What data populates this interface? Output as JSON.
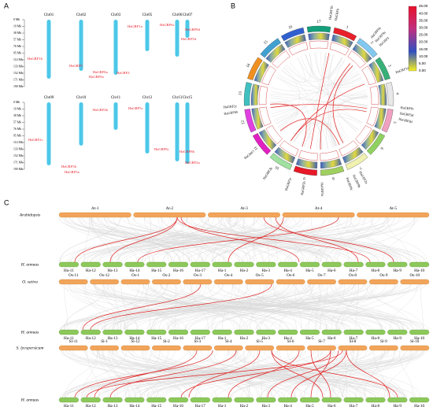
{
  "panel_a": {
    "label": "A",
    "scale": [
      "0 Mb",
      "19 Mb",
      "38 Mb",
      "57 Mb",
      "76 Mb",
      "95 Mb",
      "114 Mb",
      "133 Mb",
      "152 Mb",
      "171 Mb",
      "190 Mb"
    ],
    "groups": [
      {
        "chromosomes": [
          "Chr01",
          "Chr02",
          "Chr03",
          "Chr05",
          "Chr06",
          "Chr07"
        ],
        "genes": [
          "HaGRF1b",
          "HaGRF9",
          "HaGRF6a",
          "HaGRF9a",
          "HaGRF3",
          "HaGRF1a",
          "HaGRF6c",
          "HaGRF8d",
          "HaGRF5d"
        ]
      },
      {
        "chromosomes": [
          "Chr09",
          "Chr10",
          "Chr11",
          "Chr12",
          "Chr13",
          "Chr15"
        ],
        "genes": [
          "HaGRF2c",
          "HaGRF5b",
          "HaGRF5a",
          "HaGRF2b",
          "HaGRF5c",
          "HaGRF8c",
          "HaGRF8b",
          "HaGRF2a"
        ]
      }
    ]
  },
  "panel_b": {
    "label": "B",
    "chromosomes": [
      "17",
      "1",
      "2",
      "3",
      "4",
      "5",
      "6",
      "7",
      "8",
      "9",
      "10",
      "11",
      "12",
      "13",
      "14",
      "15",
      "16"
    ],
    "genes": [
      "HaGRF1b",
      "HaGRF9",
      "HaGRF6a",
      "HaGRF9a",
      "HaGRF3",
      "HaGRF1a",
      "HaGRF6c",
      "HaGRF5d",
      "HaGRF8d",
      "HaGRF2a",
      "HaGRF8b",
      "HaGRF8c",
      "HaGRF5a",
      "HaGRF5b",
      "HaGRF5c",
      "HaGRF2b",
      "HaGRF6b",
      "HaGRF2c",
      "HaGRF7"
    ],
    "colorbar_ticks": [
      "45.00",
      "40.00",
      "35.00",
      "30.00",
      "25.00",
      "20.00",
      "15.00",
      "10.00",
      "5.00",
      "0.00"
    ]
  },
  "panel_c": {
    "label": "C",
    "rows": [
      {
        "species": "Arabidopsis",
        "chromosomes": [
          "At-1",
          "At-2",
          "At-3",
          "At-4",
          "At-5"
        ],
        "target": "H. annuus",
        "target_chromosomes": [
          "Ha-11",
          "Ha-12",
          "Ha-13",
          "Ha-14",
          "Ha-15",
          "Ha-16",
          "Ha-17",
          "Ha-1",
          "Ha-2",
          "Ha-3",
          "Ha-4",
          "Ha-5",
          "Ha-6",
          "Ha-7",
          "Ha-8",
          "Ha-9",
          "Ha-10"
        ]
      },
      {
        "species": "O. sativa",
        "chromosomes": [
          "Os-11",
          "Os-12",
          "Os-1",
          "Os-2",
          "Os-3",
          "Os-4",
          "Os-5",
          "Os-6",
          "Os-7",
          "Os-8",
          "Os-9",
          "Os-10"
        ],
        "target": "H. annuus",
        "target_chromosomes": [
          "Ha-11",
          "Ha-12",
          "Ha-13",
          "Ha-14",
          "Ha-15",
          "Ha-16",
          "Ha-17",
          "Ha-1",
          "Ha-2",
          "Ha-3",
          "Ha-4",
          "Ha-5",
          "Ha-6",
          "Ha-7",
          "Ha-8",
          "Ha-9",
          "Ha-10"
        ]
      },
      {
        "species": "S. lycopersicum",
        "chromosomes": [
          "Sl-11",
          "Sl-1",
          "Sl-12",
          "Sl-2",
          "Sl-3",
          "Sl-4",
          "Sl-5",
          "Sl-6",
          "Sl-7",
          "Sl-8",
          "Sl-9",
          "Sl-10"
        ],
        "target": "H. annuus",
        "target_chromosomes": [
          "Ha-11",
          "Ha-12",
          "Ha-13",
          "Ha-14",
          "Ha-15",
          "Ha-16",
          "Ha-17",
          "Ha-1",
          "Ha-2",
          "Ha-3",
          "Ha-4",
          "Ha-5",
          "Ha-6",
          "Ha-7",
          "Ha-8",
          "Ha-9",
          "Ha-10"
        ]
      }
    ]
  }
}
